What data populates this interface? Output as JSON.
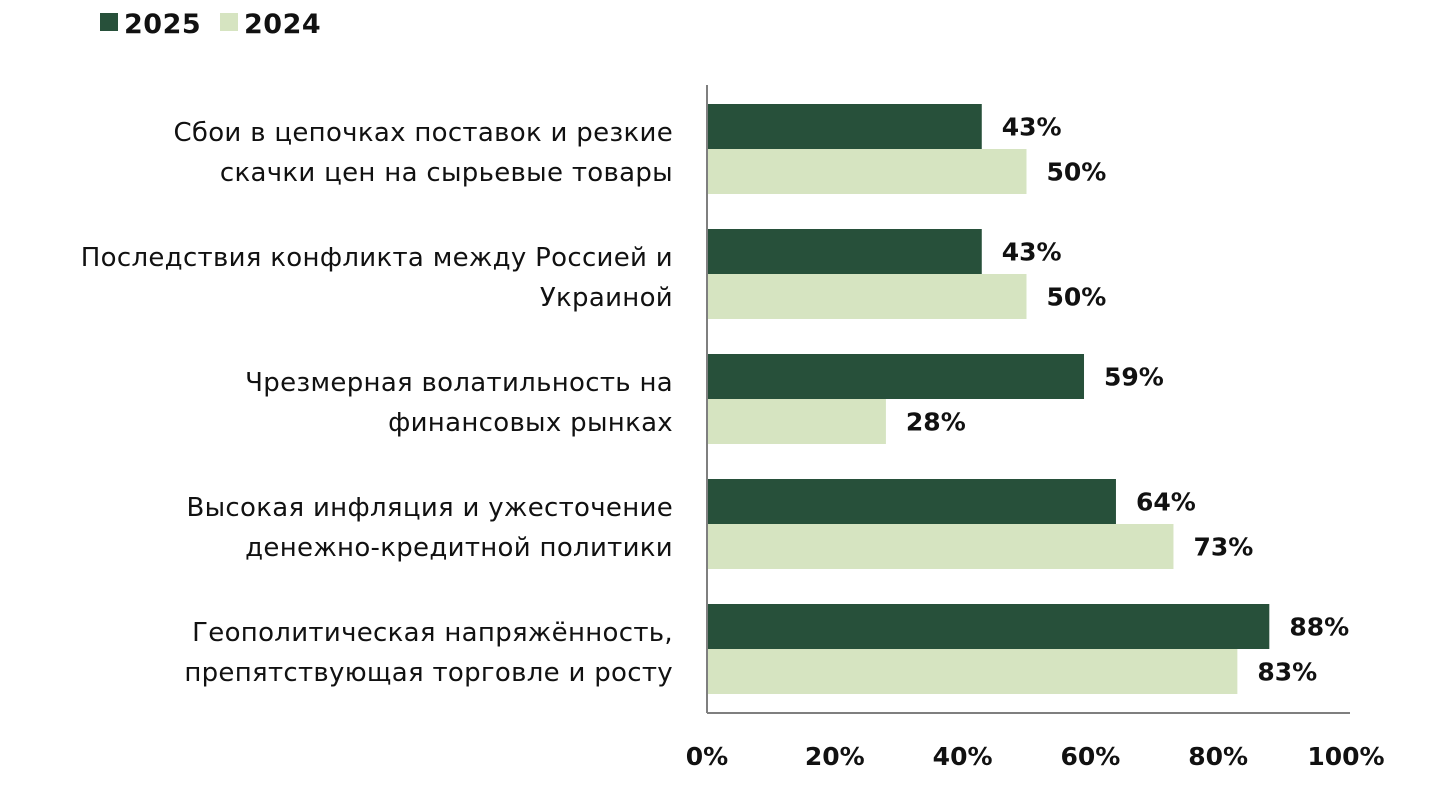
{
  "chart_data": {
    "type": "bar",
    "orientation": "horizontal",
    "categories": [
      [
        "Сбои в цепочках поставок и резкие",
        "скачки цен на сырьевые товары"
      ],
      [
        "Последствия конфликта между Россией и",
        "Украиной"
      ],
      [
        "Чрезмерная волатильность на",
        "финансовых рынках"
      ],
      [
        "Высокая инфляция и ужесточение",
        "денежно-кредитной политики"
      ],
      [
        "Геополитическая напряжённость,",
        "препятствующая торговле и росту"
      ]
    ],
    "series": [
      {
        "name": "2025",
        "color": "#27503A",
        "values": [
          43,
          43,
          59,
          64,
          88
        ],
        "labels": [
          "43%",
          "43%",
          "59%",
          "64%",
          "88%"
        ]
      },
      {
        "name": "2024",
        "color": "#D6E4C1",
        "values": [
          50,
          50,
          28,
          73,
          83
        ],
        "labels": [
          "50%",
          "50%",
          "28%",
          "73%",
          "83%"
        ]
      }
    ],
    "xlim": [
      0,
      100
    ],
    "xticks": [
      0,
      20,
      40,
      60,
      80,
      100
    ],
    "xtick_labels": [
      "0%",
      "20%",
      "40%",
      "60%",
      "80%",
      "100%"
    ],
    "grid": false,
    "legend_position": "top-left",
    "axis_color": "#7F7F7F"
  }
}
